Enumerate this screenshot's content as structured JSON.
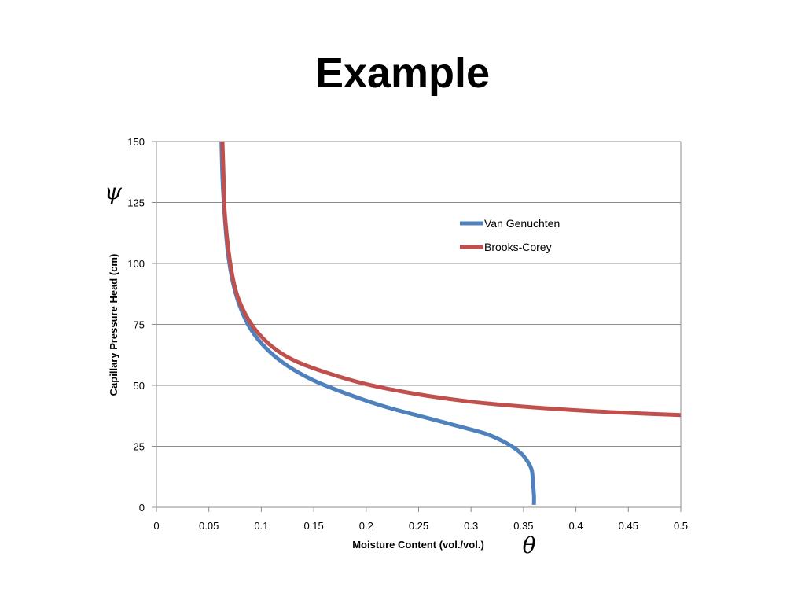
{
  "slide": {
    "title": "Example"
  },
  "chart_data": {
    "type": "line",
    "title": "",
    "xlabel": "Moisture Content (vol./vol.)",
    "ylabel": "Capillary Pressure Head (cm)",
    "x_symbol": "θ",
    "y_symbol": "ψ",
    "xlim": [
      0,
      0.5
    ],
    "ylim": [
      0,
      150
    ],
    "x_ticks": [
      "0",
      "0.05",
      "0.1",
      "0.15",
      "0.2",
      "0.25",
      "0.3",
      "0.35",
      "0.4",
      "0.45",
      "0.5"
    ],
    "y_ticks": [
      "0",
      "25",
      "50",
      "75",
      "100",
      "125",
      "150"
    ],
    "grid": "horizontal",
    "legend_position": "upper-right-inside",
    "series": [
      {
        "name": "Van Genuchten",
        "color": "#4f81bd",
        "x": [
          0.36,
          0.36,
          0.359,
          0.358,
          0.355,
          0.348,
          0.335,
          0.315,
          0.29,
          0.255,
          0.22,
          0.185,
          0.15,
          0.125,
          0.105,
          0.09,
          0.08,
          0.073,
          0.068,
          0.065,
          0.063,
          0.062
        ],
        "y": [
          1,
          5,
          10,
          15,
          18,
          22,
          26,
          30,
          33,
          37,
          41,
          46,
          52,
          58,
          65,
          73,
          82,
          92,
          105,
          120,
          135,
          150
        ]
      },
      {
        "name": "Brooks-Corey",
        "color": "#c0504d",
        "x": [
          0.5,
          0.45,
          0.4,
          0.35,
          0.3,
          0.25,
          0.2,
          0.16,
          0.13,
          0.11,
          0.095,
          0.085,
          0.077,
          0.072,
          0.068,
          0.065,
          0.064,
          0.063
        ],
        "y": [
          37.8,
          38.7,
          39.8,
          41.3,
          43.3,
          46.3,
          50.5,
          55.5,
          60.5,
          66.0,
          72.5,
          79.0,
          87.0,
          96.0,
          108.0,
          122.0,
          136.0,
          150.0
        ]
      }
    ]
  }
}
